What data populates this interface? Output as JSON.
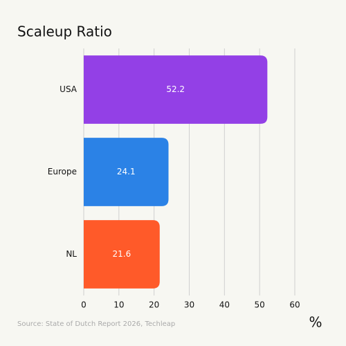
{
  "chart_data": {
    "type": "bar",
    "orientation": "horizontal",
    "title": "Scaleup Ratio",
    "categories": [
      "USA",
      "Europe",
      "NL"
    ],
    "values": [
      52.2,
      24.1,
      21.6
    ],
    "colors": [
      "#9340e6",
      "#2b82e6",
      "#ff5a29"
    ],
    "xlim": [
      0,
      60
    ],
    "xticks": [
      0,
      10,
      20,
      30,
      40,
      50,
      60
    ],
    "grid": true,
    "xlabel": "%",
    "source": "Source: State of Dutch Report 2026, Techleap"
  }
}
